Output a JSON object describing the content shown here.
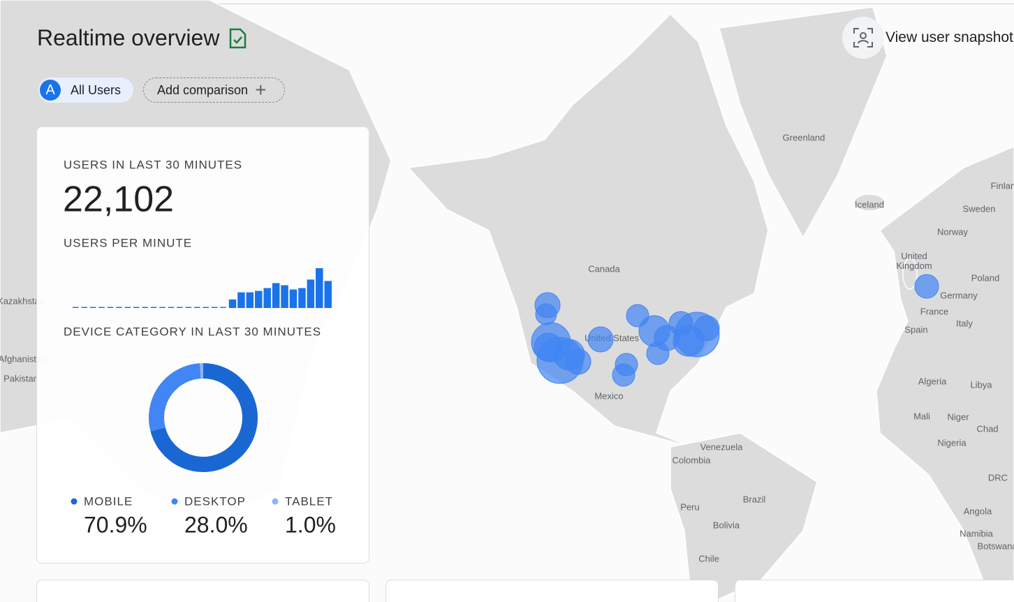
{
  "header": {
    "title": "Realtime overview"
  },
  "segments": {
    "badge": "A",
    "active": "All Users",
    "add": "Add comparison"
  },
  "snapshot_button": "View user snapshot",
  "card": {
    "users_title": "USERS IN LAST 30 MINUTES",
    "users_value": "22,102"
  },
  "map_labels": [
    "Greenland",
    "Iceland",
    "Finland",
    "Sweden",
    "Norway",
    "United Kingdom",
    "Poland",
    "Germany",
    "France",
    "Italy",
    "Spain",
    "Canada",
    "United States",
    "Mexico",
    "Algeria",
    "Libya",
    "Mali",
    "Niger",
    "Chad",
    "Nigeria",
    "DRC",
    "Angola",
    "Namibia",
    "Botswana",
    "Venezuela",
    "Colombia",
    "Peru",
    "Brazil",
    "Bolivia",
    "Chile",
    "Kazakhstan",
    "Afghanistan",
    "Pakistan"
  ],
  "chart_data": [
    {
      "type": "bar",
      "title": "USERS PER MINUTE",
      "values": [
        0,
        0,
        0,
        0,
        0,
        0,
        0,
        0,
        0,
        0,
        0,
        0,
        0,
        0,
        0,
        0,
        0,
        0,
        12,
        22,
        22,
        24,
        28,
        35,
        32,
        26,
        28,
        40,
        56,
        38
      ],
      "color": "#1a73e8"
    },
    {
      "type": "pie",
      "title": "DEVICE CATEGORY IN LAST 30 MINUTES",
      "categories": [
        "MOBILE",
        "DESKTOP",
        "TABLET"
      ],
      "values": [
        70.9,
        28.0,
        1.0
      ],
      "value_labels": [
        "70.9%",
        "28.0%",
        "1.0%"
      ],
      "colors": [
        "#1967d2",
        "#4285f4",
        "#8ab4f8"
      ]
    }
  ]
}
